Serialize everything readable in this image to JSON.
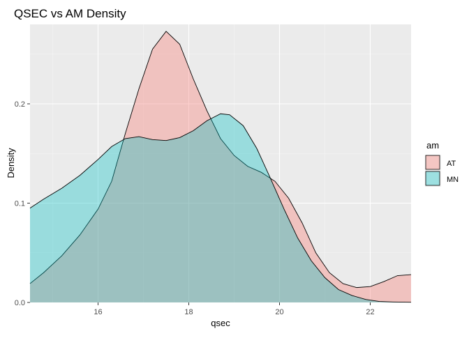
{
  "chart_data": {
    "type": "area",
    "title": "QSEC vs AM Density",
    "xlabel": "qsec",
    "ylabel": "Density",
    "xlim": [
      14.5,
      22.9
    ],
    "ylim": [
      0,
      0.28
    ],
    "x_ticks": [
      16,
      18,
      20,
      22
    ],
    "y_ticks": [
      0.0,
      0.1,
      0.2
    ],
    "y_tick_labels": [
      "0.0",
      "0.1",
      "0.2"
    ],
    "grid": true,
    "legend": {
      "title": "am",
      "position": "right"
    },
    "series": [
      {
        "name": "AT",
        "color": "#f8766d",
        "points": [
          [
            14.5,
            0.019
          ],
          [
            14.8,
            0.03
          ],
          [
            15.2,
            0.047
          ],
          [
            15.6,
            0.068
          ],
          [
            16.0,
            0.094
          ],
          [
            16.3,
            0.122
          ],
          [
            16.6,
            0.17
          ],
          [
            16.9,
            0.215
          ],
          [
            17.2,
            0.255
          ],
          [
            17.5,
            0.273
          ],
          [
            17.8,
            0.26
          ],
          [
            18.1,
            0.225
          ],
          [
            18.4,
            0.193
          ],
          [
            18.7,
            0.165
          ],
          [
            19.0,
            0.148
          ],
          [
            19.3,
            0.137
          ],
          [
            19.6,
            0.131
          ],
          [
            19.9,
            0.122
          ],
          [
            20.2,
            0.105
          ],
          [
            20.5,
            0.08
          ],
          [
            20.8,
            0.05
          ],
          [
            21.1,
            0.03
          ],
          [
            21.4,
            0.019
          ],
          [
            21.7,
            0.015
          ],
          [
            22.0,
            0.016
          ],
          [
            22.3,
            0.021
          ],
          [
            22.6,
            0.027
          ],
          [
            22.9,
            0.028
          ]
        ]
      },
      {
        "name": "MN",
        "color": "#00bfc4",
        "points": [
          [
            14.5,
            0.095
          ],
          [
            14.8,
            0.104
          ],
          [
            15.2,
            0.115
          ],
          [
            15.6,
            0.128
          ],
          [
            16.0,
            0.144
          ],
          [
            16.3,
            0.157
          ],
          [
            16.6,
            0.165
          ],
          [
            16.9,
            0.167
          ],
          [
            17.2,
            0.164
          ],
          [
            17.5,
            0.163
          ],
          [
            17.8,
            0.166
          ],
          [
            18.1,
            0.173
          ],
          [
            18.4,
            0.183
          ],
          [
            18.7,
            0.19
          ],
          [
            18.9,
            0.189
          ],
          [
            19.2,
            0.178
          ],
          [
            19.5,
            0.155
          ],
          [
            19.8,
            0.125
          ],
          [
            20.1,
            0.094
          ],
          [
            20.4,
            0.065
          ],
          [
            20.7,
            0.042
          ],
          [
            21.0,
            0.025
          ],
          [
            21.3,
            0.013
          ],
          [
            21.6,
            0.007
          ],
          [
            21.9,
            0.003
          ],
          [
            22.2,
            0.001
          ],
          [
            22.5,
            0.0005
          ],
          [
            22.9,
            0.0002
          ]
        ]
      }
    ]
  }
}
